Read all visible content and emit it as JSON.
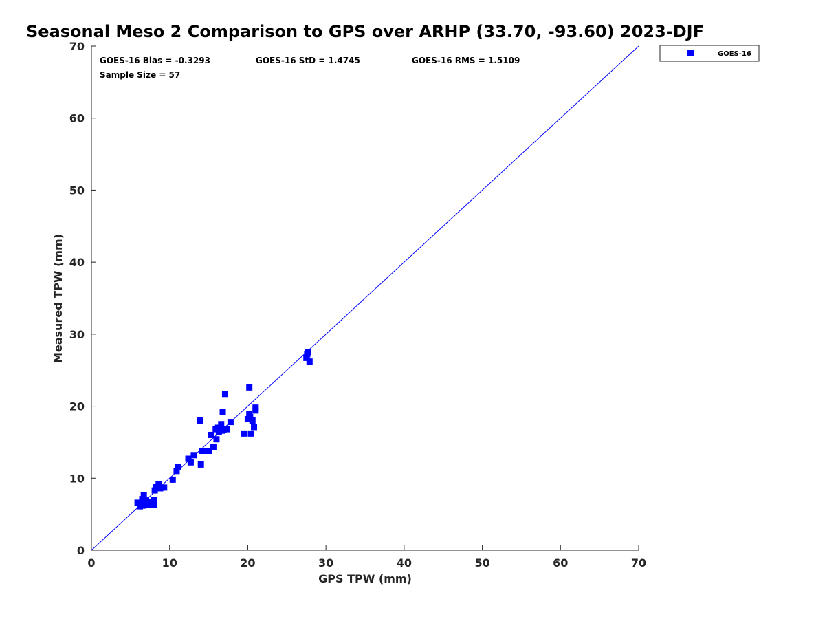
{
  "chart_data": {
    "type": "scatter",
    "title": "Seasonal Meso 2 Comparison to GPS over ARHP (33.70, -93.60) 2023-DJF",
    "xlabel": "GPS TPW (mm)",
    "ylabel": "Measured TPW (mm)",
    "xlim": [
      0,
      70
    ],
    "ylim": [
      0,
      70
    ],
    "xticks": [
      "0",
      "10",
      "20",
      "30",
      "40",
      "50",
      "60",
      "70"
    ],
    "yticks": [
      "0",
      "10",
      "20",
      "30",
      "40",
      "50",
      "60",
      "70"
    ],
    "grid": false,
    "legend_position": "top-right, outside plot",
    "reference_line": {
      "name": "1:1 line",
      "from": [
        0,
        0
      ],
      "to": [
        70,
        70
      ],
      "color": "#0000ff"
    },
    "stats": {
      "bias": "GOES-16 Bias = -0.3293",
      "std": "GOES-16 StD = 1.4745",
      "rms": "GOES-16 RMS = 1.5109",
      "sample_size": "Sample Size = 57"
    },
    "series": [
      {
        "name": "GOES-16",
        "color": "#0000ff",
        "marker": "square",
        "points": [
          [
            5.9,
            6.6
          ],
          [
            6.2,
            6.1
          ],
          [
            6.4,
            6.3
          ],
          [
            6.5,
            7.1
          ],
          [
            6.6,
            6.2
          ],
          [
            6.7,
            7.6
          ],
          [
            6.8,
            6.5
          ],
          [
            7.0,
            6.9
          ],
          [
            7.2,
            6.3
          ],
          [
            7.4,
            6.6
          ],
          [
            7.6,
            6.5
          ],
          [
            8.0,
            6.3
          ],
          [
            8.0,
            7.0
          ],
          [
            8.1,
            8.3
          ],
          [
            8.6,
            9.2
          ],
          [
            8.8,
            8.6
          ],
          [
            9.3,
            8.7
          ],
          [
            10.4,
            9.8
          ],
          [
            10.9,
            11.0
          ],
          [
            11.1,
            11.6
          ],
          [
            12.4,
            12.7
          ],
          [
            12.7,
            12.2
          ],
          [
            13.1,
            13.2
          ],
          [
            13.9,
            18.0
          ],
          [
            14.0,
            11.9
          ],
          [
            14.2,
            13.8
          ],
          [
            15.3,
            16.0
          ],
          [
            15.6,
            14.3
          ],
          [
            15.9,
            16.8
          ],
          [
            16.0,
            15.4
          ],
          [
            16.2,
            17.0
          ],
          [
            16.3,
            16.4
          ],
          [
            16.6,
            17.5
          ],
          [
            16.7,
            16.6
          ],
          [
            16.8,
            19.2
          ],
          [
            16.9,
            16.7
          ],
          [
            17.1,
            21.7
          ],
          [
            17.3,
            16.8
          ],
          [
            17.8,
            17.8
          ],
          [
            19.5,
            16.2
          ],
          [
            20.0,
            18.2
          ],
          [
            20.2,
            22.6
          ],
          [
            20.2,
            18.9
          ],
          [
            20.3,
            18.5
          ],
          [
            20.4,
            16.2
          ],
          [
            20.6,
            18.0
          ],
          [
            20.8,
            17.1
          ],
          [
            21.0,
            19.4
          ],
          [
            21.0,
            19.8
          ],
          [
            27.5,
            26.7
          ],
          [
            27.6,
            27.2
          ],
          [
            27.7,
            27.5
          ],
          [
            27.9,
            26.2
          ],
          [
            7.3,
            6.7
          ],
          [
            6.9,
            6.9
          ],
          [
            8.3,
            8.8
          ],
          [
            15.0,
            13.8
          ]
        ]
      }
    ]
  }
}
